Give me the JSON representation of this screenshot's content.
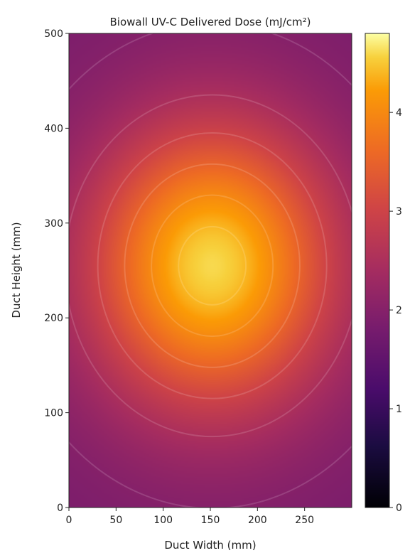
{
  "chart_data": {
    "type": "heatmap",
    "title": "Biowall UV-C Delivered Dose (mJ/cm²)",
    "xlabel": "Duct Width (mm)",
    "ylabel": "Duct Height (mm)",
    "xlim": [
      0,
      300
    ],
    "ylim": [
      0,
      500
    ],
    "x_ticks": [
      0,
      50,
      100,
      150,
      200,
      250
    ],
    "y_ticks": [
      0,
      100,
      200,
      300,
      400,
      500
    ],
    "colormap": "inferno",
    "colorbar": {
      "range": [
        0,
        4.8
      ],
      "ticks": [
        0,
        1,
        2,
        3,
        4
      ]
    },
    "field": {
      "peak_center": [
        152,
        255
      ],
      "peak_value": 4.6,
      "base_value": 1.85,
      "sigma_x": 130,
      "sigma_y": 150
    },
    "contour_levels": [
      2.0,
      2.5,
      3.0,
      3.5,
      4.0,
      4.4
    ],
    "grid": false
  }
}
